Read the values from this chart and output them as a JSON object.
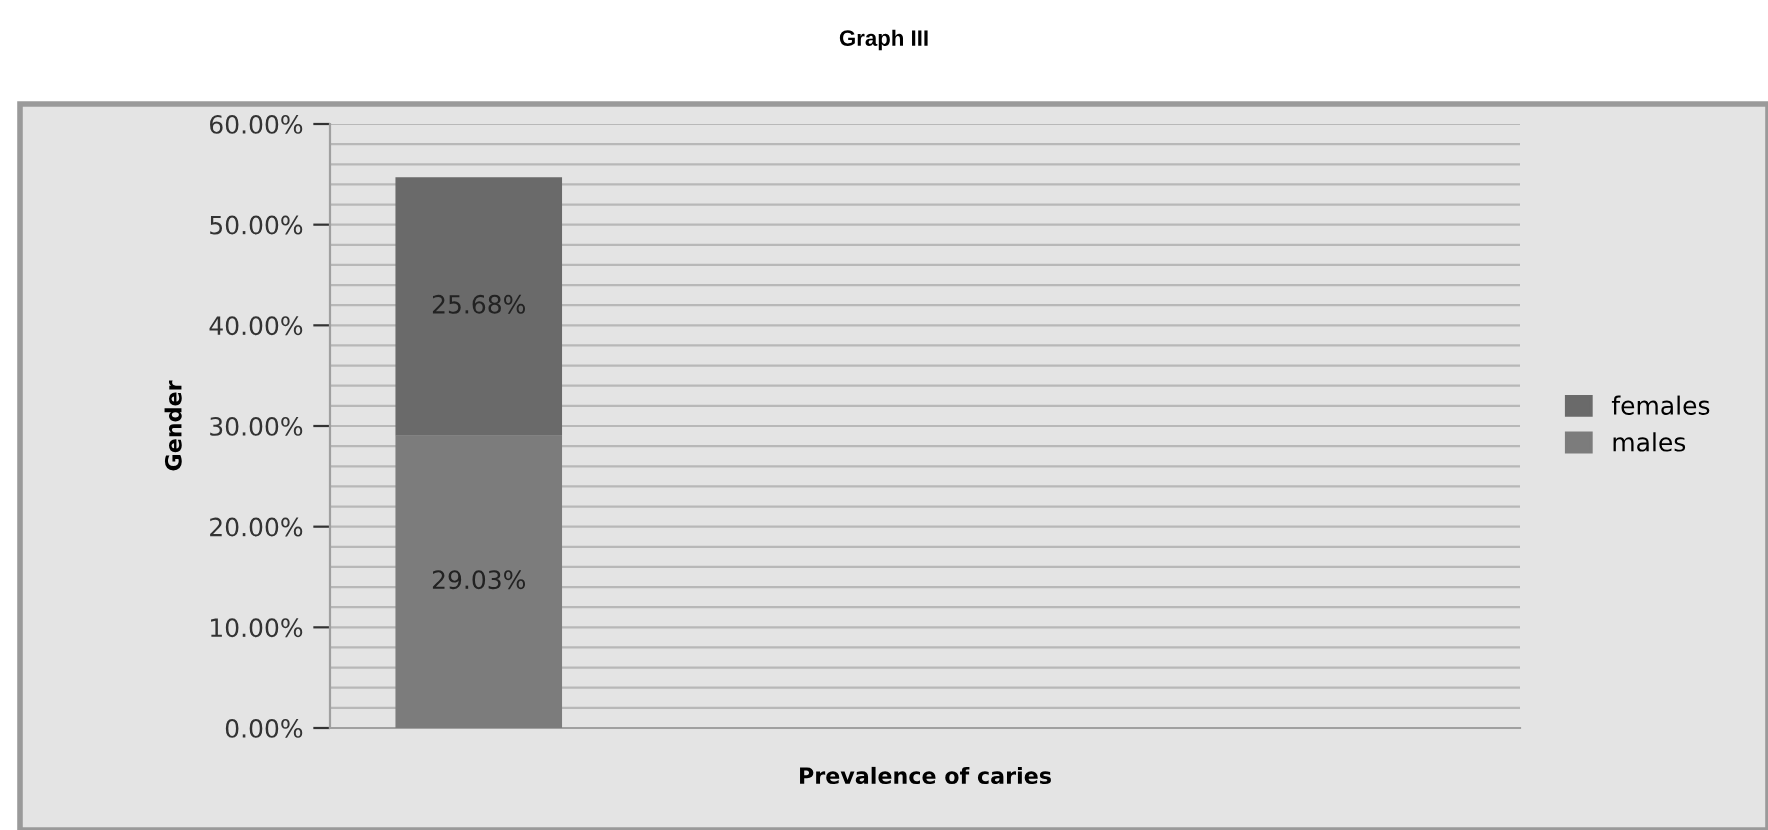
{
  "chart_data": {
    "type": "bar",
    "title": "Graph III",
    "xlabel": "Prevalence of caries",
    "ylabel": "Gender",
    "stacked": true,
    "categories": [
      null
    ],
    "series": [
      {
        "name": "males",
        "color": "#7c7c7c",
        "values": [
          29.03
        ],
        "value_labels": [
          "29.03%"
        ]
      },
      {
        "name": "females",
        "color": "#6a6a6a",
        "values": [
          25.68
        ],
        "value_labels": [
          "25.68%"
        ]
      }
    ],
    "ylim": [
      0,
      60
    ],
    "yticks": [
      {
        "value": 0,
        "label": "0.00%"
      },
      {
        "value": 2,
        "label": null
      },
      {
        "value": 4,
        "label": null
      },
      {
        "value": 6,
        "label": null
      },
      {
        "value": 8,
        "label": null
      },
      {
        "value": 10,
        "label": "10.00%"
      },
      {
        "value": 12,
        "label": null
      },
      {
        "value": 14,
        "label": null
      },
      {
        "value": 16,
        "label": null
      },
      {
        "value": 18,
        "label": null
      },
      {
        "value": 20,
        "label": "20.00%"
      },
      {
        "value": 22,
        "label": null
      },
      {
        "value": 24,
        "label": null
      },
      {
        "value": 26,
        "label": null
      },
      {
        "value": 28,
        "label": null
      },
      {
        "value": 30,
        "label": "30.00%"
      },
      {
        "value": 32,
        "label": null
      },
      {
        "value": 34,
        "label": null
      },
      {
        "value": 36,
        "label": null
      },
      {
        "value": 38,
        "label": null
      },
      {
        "value": 40,
        "label": "40.00%"
      },
      {
        "value": 42,
        "label": null
      },
      {
        "value": 44,
        "label": null
      },
      {
        "value": 46,
        "label": null
      },
      {
        "value": 48,
        "label": null
      },
      {
        "value": 50,
        "label": "50.00%"
      },
      {
        "value": 52,
        "label": null
      },
      {
        "value": 54,
        "label": null
      },
      {
        "value": 56,
        "label": null
      },
      {
        "value": 58,
        "label": null
      },
      {
        "value": 60,
        "label": "60.00%"
      }
    ],
    "grid": "y",
    "legend": "right",
    "tick_labels": "y"
  }
}
